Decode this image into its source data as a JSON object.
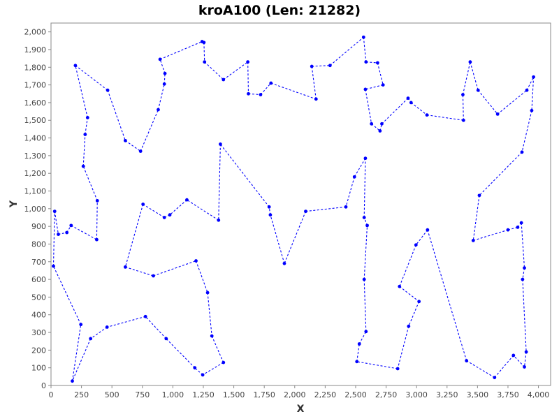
{
  "chart_data": {
    "type": "line",
    "title": "kroA100 (Len: 21282)",
    "xlabel": "X",
    "ylabel": "Y",
    "xlim": [
      0,
      4100
    ],
    "ylim": [
      0,
      2050
    ],
    "xticks": [
      0,
      250,
      500,
      750,
      1000,
      1250,
      1500,
      1750,
      2000,
      2250,
      2500,
      2750,
      3000,
      3250,
      3500,
      3750,
      4000
    ],
    "xtick_labels": [
      "0",
      "250",
      "500",
      "750",
      "1,000",
      "1,250",
      "1,500",
      "1,750",
      "2,000",
      "2,250",
      "2,500",
      "2,750",
      "3,000",
      "3,250",
      "3,500",
      "3,750",
      "4,000"
    ],
    "yticks": [
      0,
      100,
      200,
      300,
      400,
      500,
      600,
      700,
      800,
      900,
      1000,
      1100,
      1200,
      1300,
      1400,
      1500,
      1600,
      1700,
      1800,
      1900,
      2000
    ],
    "ytick_labels": [
      "0",
      "100",
      "200",
      "300",
      "400",
      "500",
      "600",
      "700",
      "800",
      "900",
      "1,000",
      "1,100",
      "1,200",
      "1,300",
      "1,400",
      "1,500",
      "1,600",
      "1,700",
      "1,800",
      "1,900",
      "2,000"
    ],
    "grid": false,
    "line_style": "dashed",
    "closed_tour": true,
    "color": "#0000ff",
    "points": [
      [
        30,
        985
      ],
      [
        60,
        855
      ],
      [
        130,
        865
      ],
      [
        165,
        905
      ],
      [
        375,
        825
      ],
      [
        380,
        1045
      ],
      [
        265,
        1240
      ],
      [
        280,
        1420
      ],
      [
        300,
        1515
      ],
      [
        200,
        1810
      ],
      [
        465,
        1670
      ],
      [
        610,
        1385
      ],
      [
        735,
        1325
      ],
      [
        880,
        1560
      ],
      [
        930,
        1705
      ],
      [
        935,
        1765
      ],
      [
        895,
        1845
      ],
      [
        1240,
        1945
      ],
      [
        1255,
        1940
      ],
      [
        1260,
        1830
      ],
      [
        1415,
        1730
      ],
      [
        1615,
        1830
      ],
      [
        1620,
        1650
      ],
      [
        1720,
        1645
      ],
      [
        1805,
        1710
      ],
      [
        2175,
        1620
      ],
      [
        2140,
        1805
      ],
      [
        2290,
        1810
      ],
      [
        2565,
        1970
      ],
      [
        2585,
        1830
      ],
      [
        2680,
        1825
      ],
      [
        2725,
        1700
      ],
      [
        2580,
        1675
      ],
      [
        2630,
        1480
      ],
      [
        2700,
        1440
      ],
      [
        2715,
        1480
      ],
      [
        2930,
        1625
      ],
      [
        2955,
        1600
      ],
      [
        3085,
        1530
      ],
      [
        3385,
        1500
      ],
      [
        3380,
        1645
      ],
      [
        3440,
        1830
      ],
      [
        3505,
        1670
      ],
      [
        3665,
        1535
      ],
      [
        3905,
        1670
      ],
      [
        3960,
        1745
      ],
      [
        3945,
        1555
      ],
      [
        3865,
        1320
      ],
      [
        3515,
        1075
      ],
      [
        3465,
        820
      ],
      [
        3750,
        880
      ],
      [
        3830,
        895
      ],
      [
        3860,
        920
      ],
      [
        3885,
        665
      ],
      [
        3870,
        600
      ],
      [
        3900,
        190
      ],
      [
        3885,
        105
      ],
      [
        3795,
        170
      ],
      [
        3640,
        45
      ],
      [
        3410,
        140
      ],
      [
        3090,
        880
      ],
      [
        2995,
        795
      ],
      [
        2860,
        560
      ],
      [
        3020,
        475
      ],
      [
        2935,
        335
      ],
      [
        2845,
        95
      ],
      [
        2510,
        135
      ],
      [
        2530,
        235
      ],
      [
        2585,
        305
      ],
      [
        2570,
        600
      ],
      [
        2595,
        905
      ],
      [
        2570,
        950
      ],
      [
        2580,
        1285
      ],
      [
        2490,
        1180
      ],
      [
        2420,
        1010
      ],
      [
        2090,
        985
      ],
      [
        1915,
        690
      ],
      [
        1800,
        965
      ],
      [
        1790,
        1010
      ],
      [
        1390,
        1365
      ],
      [
        1375,
        935
      ],
      [
        1115,
        1050
      ],
      [
        975,
        965
      ],
      [
        930,
        950
      ],
      [
        755,
        1025
      ],
      [
        610,
        670
      ],
      [
        840,
        620
      ],
      [
        1190,
        705
      ],
      [
        1285,
        525
      ],
      [
        1320,
        280
      ],
      [
        1415,
        130
      ],
      [
        1245,
        60
      ],
      [
        1180,
        100
      ],
      [
        945,
        265
      ],
      [
        775,
        390
      ],
      [
        460,
        330
      ],
      [
        325,
        265
      ],
      [
        175,
        25
      ],
      [
        245,
        345
      ],
      [
        20,
        675
      ]
    ]
  }
}
